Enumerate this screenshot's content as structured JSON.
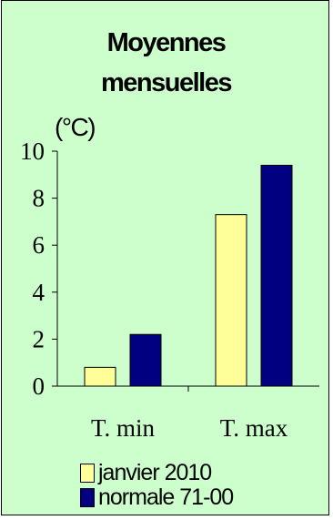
{
  "chart_data": {
    "type": "bar",
    "title": "Moyennes\nmensuelles",
    "ylabel": "(°C)",
    "categories": [
      "T. min",
      "T. max"
    ],
    "series": [
      {
        "name": "janvier 2010",
        "values": [
          0.8,
          7.3
        ],
        "color": "#ffff99"
      },
      {
        "name": "normale 71-00",
        "values": [
          2.2,
          9.4
        ],
        "color": "#000080"
      }
    ],
    "ylim": [
      0,
      10
    ],
    "yticks": [
      0,
      2,
      4,
      6,
      8,
      10
    ],
    "grid": false,
    "legend_position": "bottom",
    "background": "#ccffcc"
  }
}
